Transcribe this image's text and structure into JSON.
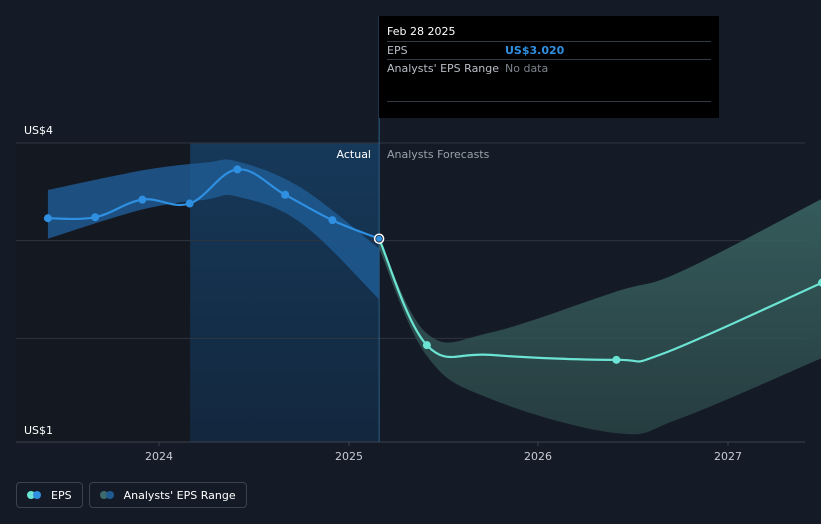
{
  "tooltip": {
    "date": "Feb 28 2025",
    "eps_label": "EPS",
    "eps_value": "US$3.020",
    "range_label": "Analysts' EPS Range",
    "range_value": "No data"
  },
  "chart_labels": {
    "actual": "Actual",
    "forecast": "Analysts Forecasts"
  },
  "legend": {
    "eps": "EPS",
    "range": "Analysts' EPS Range"
  },
  "colors": {
    "background": "#151b26",
    "eps_actual": "#2f8fe0",
    "eps_forecast": "#6ce4d3",
    "range_actual": "#1f5b92",
    "range_forecast": "#2d4a4f",
    "highlight_band": "#13314d"
  },
  "chart_data": {
    "type": "line",
    "y_tick_labels": [
      "US$1",
      "US$4"
    ],
    "ylim": [
      1,
      4
    ],
    "x_tick_labels": [
      "2024",
      "2025",
      "2026",
      "2027"
    ],
    "xlim": [
      "2023-06-01",
      "2027-07-01"
    ],
    "grid": true,
    "divider_date": "2025-02-28",
    "highlight_start": "2024-03-01",
    "series": [
      {
        "name": "EPS",
        "kind": "actual",
        "points": [
          {
            "date": "2023-06-01",
            "value": 3.23,
            "marker": true
          },
          {
            "date": "2023-08-31",
            "value": 3.24,
            "marker": true
          },
          {
            "date": "2023-11-30",
            "value": 3.42,
            "marker": true
          },
          {
            "date": "2024-02-29",
            "value": 3.38,
            "marker": true
          },
          {
            "date": "2024-05-31",
            "value": 3.73,
            "marker": true
          },
          {
            "date": "2024-08-31",
            "value": 3.47,
            "marker": true
          },
          {
            "date": "2024-11-30",
            "value": 3.21,
            "marker": true
          },
          {
            "date": "2025-02-28",
            "value": 3.02,
            "marker": true
          }
        ]
      },
      {
        "name": "EPS",
        "kind": "forecast",
        "points": [
          {
            "date": "2025-02-28",
            "value": 3.02,
            "marker": false
          },
          {
            "date": "2025-05-31",
            "value": 1.93,
            "marker": true
          },
          {
            "date": "2025-10-01",
            "value": 1.83,
            "marker": false
          },
          {
            "date": "2026-05-31",
            "value": 1.78,
            "marker": true
          },
          {
            "date": "2026-09-01",
            "value": 1.85,
            "marker": false
          },
          {
            "date": "2027-07-01",
            "value": 2.57,
            "marker": true
          }
        ]
      }
    ],
    "ranges": [
      {
        "name": "Analysts' EPS Range",
        "kind": "actual",
        "points": [
          {
            "date": "2023-06-01",
            "low": 3.02,
            "high": 3.52
          },
          {
            "date": "2023-12-01",
            "low": 3.32,
            "high": 3.72
          },
          {
            "date": "2024-04-01",
            "low": 3.42,
            "high": 3.8
          },
          {
            "date": "2024-06-01",
            "low": 3.45,
            "high": 3.81
          },
          {
            "date": "2024-10-01",
            "low": 3.18,
            "high": 3.54
          },
          {
            "date": "2025-02-28",
            "low": 2.4,
            "high": 2.92
          }
        ]
      },
      {
        "name": "Analysts' EPS Range",
        "kind": "forecast",
        "points": [
          {
            "date": "2025-02-28",
            "low": 2.92,
            "high": 3.02
          },
          {
            "date": "2025-05-31",
            "low": 1.82,
            "high": 2.05
          },
          {
            "date": "2025-10-01",
            "low": 1.38,
            "high": 2.06
          },
          {
            "date": "2026-05-31",
            "low": 1.03,
            "high": 2.48
          },
          {
            "date": "2026-10-01",
            "low": 1.18,
            "high": 2.68
          },
          {
            "date": "2027-07-01",
            "low": 1.8,
            "high": 3.43
          }
        ]
      }
    ]
  }
}
